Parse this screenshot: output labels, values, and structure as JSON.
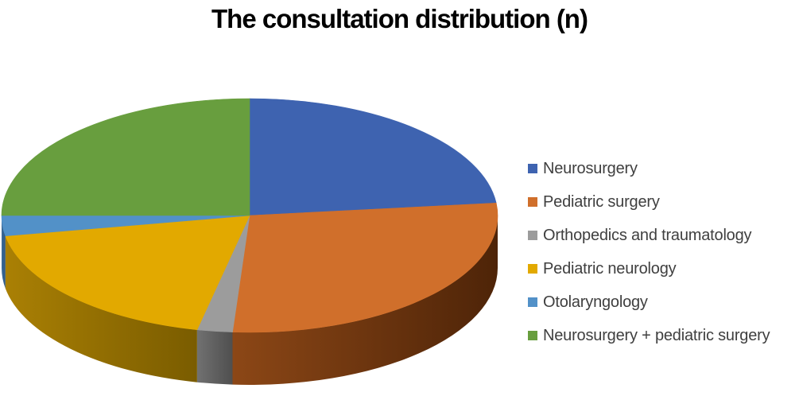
{
  "title": "The consultation distribution (n)",
  "colors": {
    "background": "#FFFFFF",
    "title_text": "#000000",
    "legend_text": "#3F3F3F"
  },
  "chart_data": {
    "type": "pie",
    "style": "3d-pie",
    "title": "The consultation distribution (n)",
    "legend_position": "right",
    "data_labels_shown": false,
    "values_note": "percent of whole estimated from slice angles (no numeric labels visible in chart)",
    "slices": [
      {
        "label": "Neurosurgery",
        "percent": 23.3,
        "color": "#3E63B0",
        "side_light": "#2B4577",
        "side_dark": "#203457"
      },
      {
        "label": "Pediatric surgery",
        "percent": 27.8,
        "color": "#D06F2B",
        "side_light": "#8C4716",
        "side_dark": "#4E2408"
      },
      {
        "label": "Orthopedics and traumatology",
        "percent": 2.3,
        "color": "#9C9C9C",
        "side_light": "#717171",
        "side_dark": "#4F4F4F"
      },
      {
        "label": "Pediatric neurology",
        "percent": 18.8,
        "color": "#E2A900",
        "side_light": "#AA8004",
        "side_dark": "#7A5C00"
      },
      {
        "label": "Otolaryngology",
        "percent": 2.8,
        "color": "#5291C8",
        "side_light": "#3B6B9A",
        "side_dark": "#2E577F"
      },
      {
        "label": "Neurosurgery + pediatric surgery",
        "percent": 25.0,
        "color": "#689E3E",
        "side_light": "#46702A",
        "side_dark": "#35541F"
      }
    ]
  }
}
